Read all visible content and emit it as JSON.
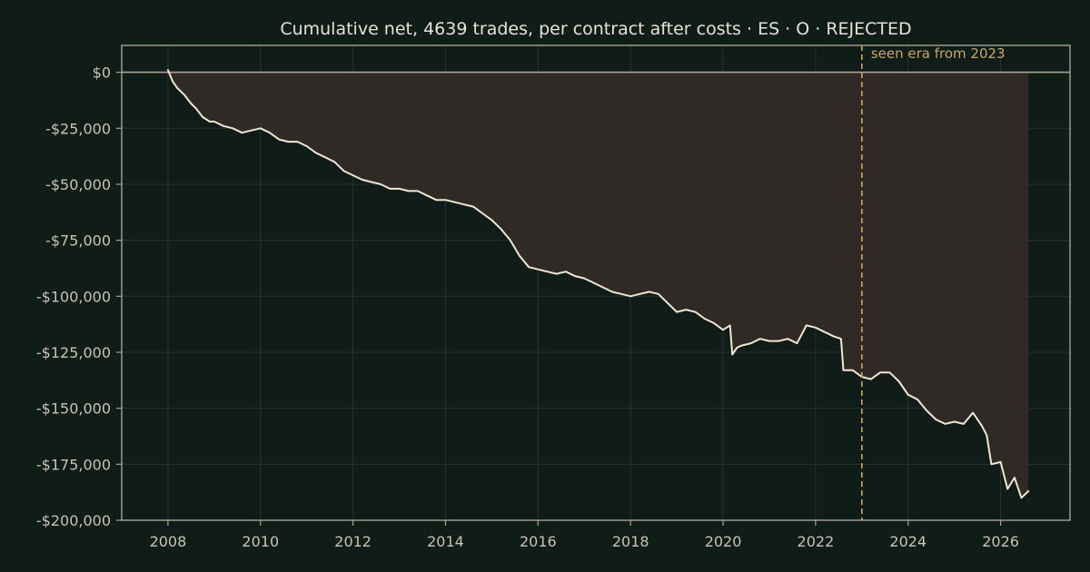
{
  "chart_data": {
    "type": "line",
    "title": "Cumulative net, 4639 trades, per contract after costs  ·  ES · O · REJECTED",
    "xlabel": "",
    "ylabel": "",
    "xlim": [
      2007.0,
      2027.5
    ],
    "ylim": [
      -200000,
      12000
    ],
    "x_ticks": [
      {
        "value": 2008,
        "label": "2008"
      },
      {
        "value": 2010,
        "label": "2010"
      },
      {
        "value": 2012,
        "label": "2012"
      },
      {
        "value": 2014,
        "label": "2014"
      },
      {
        "value": 2016,
        "label": "2016"
      },
      {
        "value": 2018,
        "label": "2018"
      },
      {
        "value": 2020,
        "label": "2020"
      },
      {
        "value": 2022,
        "label": "2022"
      },
      {
        "value": 2024,
        "label": "2024"
      },
      {
        "value": 2026,
        "label": "2026"
      }
    ],
    "y_ticks": [
      {
        "value": 0,
        "label": "$0"
      },
      {
        "value": -25000,
        "label": "-$25,000"
      },
      {
        "value": -50000,
        "label": "-$50,000"
      },
      {
        "value": -75000,
        "label": "-$75,000"
      },
      {
        "value": -100000,
        "label": "-$100,000"
      },
      {
        "value": -125000,
        "label": "-$125,000"
      },
      {
        "value": -150000,
        "label": "-$150,000"
      },
      {
        "value": -175000,
        "label": "-$175,000"
      },
      {
        "value": -200000,
        "label": "-$200,000"
      }
    ],
    "grid": true,
    "baseline": 0,
    "annotations": [
      {
        "type": "vline",
        "x": 2023.0,
        "style": "dashed",
        "color": "#c8a66a",
        "label": "seen era from 2023"
      }
    ],
    "colors": {
      "background": "#0f1c17",
      "line": "#f0e6d2",
      "fill": "#332b27",
      "axis": "#a9a394",
      "grid": "#25342d",
      "text": "#e7e1d6",
      "tick_text": "#c9c3b6",
      "annotation": "#c8a66a"
    },
    "series": [
      {
        "name": "",
        "x": [
          2008.0,
          2008.1,
          2008.2,
          2008.35,
          2008.5,
          2008.6,
          2008.75,
          2008.9,
          2009.0,
          2009.2,
          2009.4,
          2009.6,
          2009.8,
          2010.0,
          2010.2,
          2010.4,
          2010.6,
          2010.8,
          2011.0,
          2011.2,
          2011.4,
          2011.6,
          2011.8,
          2012.0,
          2012.2,
          2012.4,
          2012.6,
          2012.8,
          2013.0,
          2013.2,
          2013.4,
          2013.6,
          2013.8,
          2014.0,
          2014.2,
          2014.4,
          2014.6,
          2014.8,
          2015.0,
          2015.2,
          2015.4,
          2015.6,
          2015.8,
          2016.0,
          2016.2,
          2016.4,
          2016.6,
          2016.8,
          2017.0,
          2017.2,
          2017.4,
          2017.6,
          2017.8,
          2018.0,
          2018.2,
          2018.4,
          2018.6,
          2018.8,
          2019.0,
          2019.2,
          2019.4,
          2019.6,
          2019.8,
          2020.0,
          2020.15,
          2020.2,
          2020.3,
          2020.4,
          2020.6,
          2020.8,
          2021.0,
          2021.2,
          2021.4,
          2021.6,
          2021.8,
          2022.0,
          2022.2,
          2022.4,
          2022.55,
          2022.6,
          2022.8,
          2023.0,
          2023.2,
          2023.4,
          2023.6,
          2023.8,
          2024.0,
          2024.2,
          2024.4,
          2024.6,
          2024.8,
          2025.0,
          2025.2,
          2025.4,
          2025.6,
          2025.7,
          2025.8,
          2026.0,
          2026.15,
          2026.3,
          2026.45,
          2026.6
        ],
        "y": [
          1000,
          -4000,
          -7000,
          -10000,
          -14000,
          -16000,
          -20000,
          -22000,
          -22000,
          -24000,
          -25000,
          -27000,
          -26000,
          -25000,
          -27000,
          -30000,
          -31000,
          -31000,
          -33000,
          -36000,
          -38000,
          -40000,
          -44000,
          -46000,
          -48000,
          -49000,
          -50000,
          -52000,
          -52000,
          -53000,
          -53000,
          -55000,
          -57000,
          -57000,
          -58000,
          -59000,
          -60000,
          -63000,
          -66000,
          -70000,
          -75000,
          -82000,
          -87000,
          -88000,
          -89000,
          -90000,
          -89000,
          -91000,
          -92000,
          -94000,
          -96000,
          -98000,
          -99000,
          -100000,
          -99000,
          -98000,
          -99000,
          -103000,
          -107000,
          -106000,
          -107000,
          -110000,
          -112000,
          -115000,
          -113000,
          -126000,
          -123000,
          -122000,
          -121000,
          -119000,
          -120000,
          -120000,
          -119000,
          -121000,
          -113000,
          -114000,
          -116000,
          -118000,
          -119000,
          -133000,
          -133000,
          -136000,
          -137000,
          -134000,
          -134000,
          -138000,
          -144000,
          -146000,
          -151000,
          -155000,
          -157000,
          -156000,
          -157000,
          -152000,
          -158000,
          -162000,
          -175000,
          -174000,
          -186000,
          -181000,
          -190000,
          -187000
        ]
      }
    ]
  }
}
